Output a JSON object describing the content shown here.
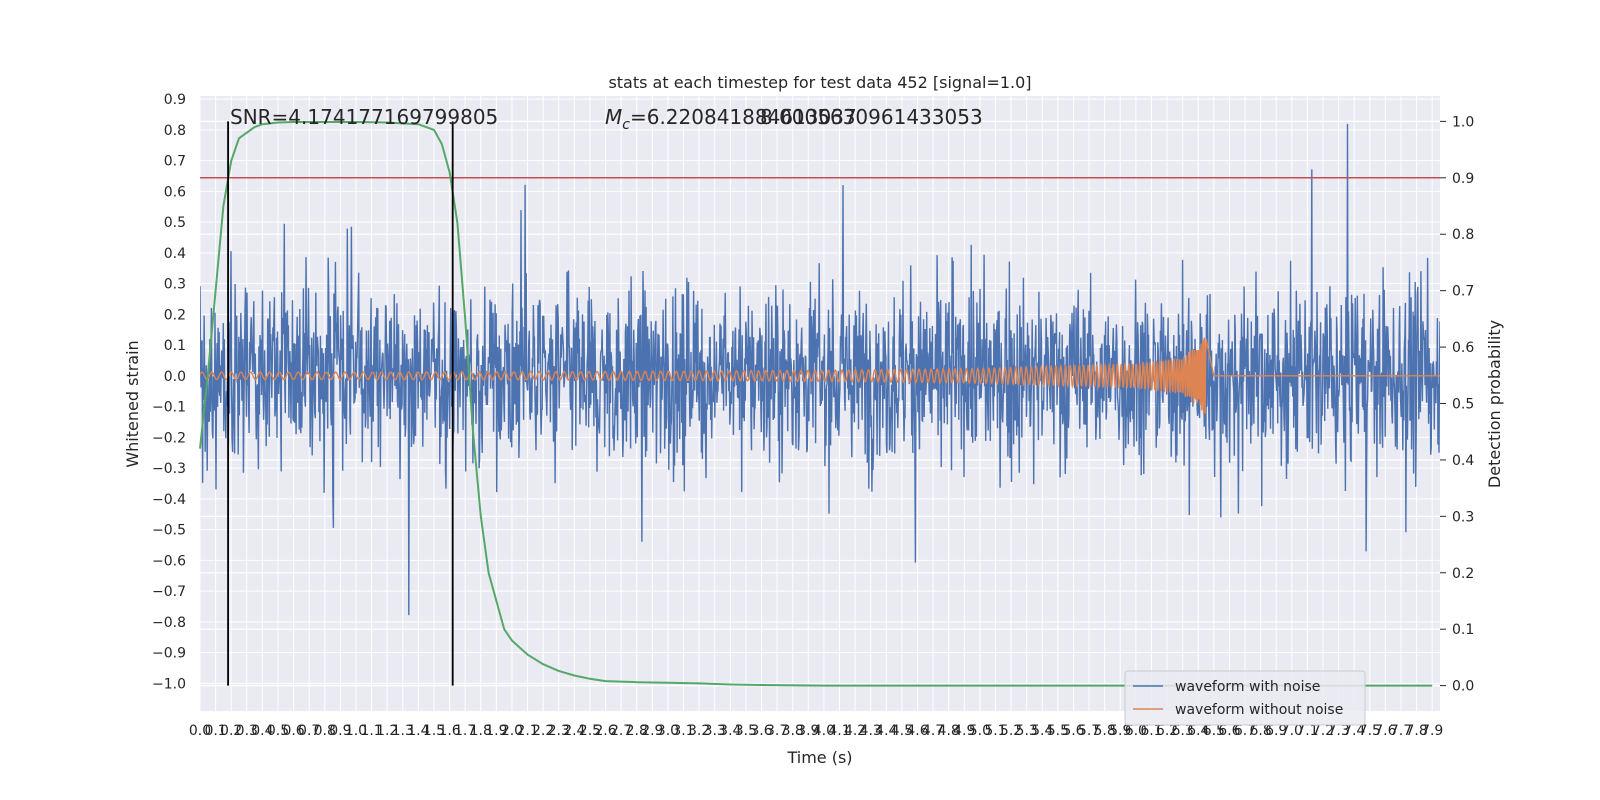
{
  "chart_data": {
    "type": "line",
    "title": "stats at each timestep for test data 452 [signal=1.0]",
    "xlabel": "Time (s)",
    "ylabel": "Whitened strain",
    "y2label": "Detection probability",
    "xlim": [
      0.0,
      7.95
    ],
    "ylim": [
      -1.09,
      0.91
    ],
    "y2lim": [
      -0.045,
      1.045
    ],
    "x_tick_labels": [
      "0.0",
      "0.1",
      "0.2",
      "0.3",
      "0.4",
      "0.5",
      "0.6",
      "0.7",
      "0.8",
      "0.9",
      "1.0",
      "1.1",
      "1.2",
      "1.3",
      "1.4",
      "1.5",
      "1.6",
      "1.7",
      "1.8",
      "1.9",
      "2.0",
      "2.1",
      "2.2",
      "2.3",
      "2.4",
      "2.5",
      "2.6",
      "2.7",
      "2.8",
      "2.9",
      "3.0",
      "3.1",
      "3.2",
      "3.3",
      "3.4",
      "3.5",
      "3.6",
      "3.7",
      "3.8",
      "3.9",
      "4.0",
      "4.1",
      "4.2",
      "4.3",
      "4.4",
      "4.5",
      "4.6",
      "4.7",
      "4.8",
      "4.9",
      "5.0",
      "5.1",
      "5.2",
      "5.3",
      "5.4",
      "5.5",
      "5.6",
      "5.7",
      "5.8",
      "5.9",
      "6.0",
      "6.1",
      "6.2",
      "6.3",
      "6.4",
      "6.5",
      "6.6",
      "6.7",
      "6.8",
      "6.9",
      "7.0",
      "7.1",
      "7.2",
      "7.3",
      "7.4",
      "7.5",
      "7.6",
      "7.7",
      "7.8",
      "7.9"
    ],
    "y_tick_labels": [
      "0.9",
      "0.8",
      "0.7",
      "0.6",
      "0.5",
      "0.4",
      "0.3",
      "0.2",
      "0.1",
      "0.0",
      "−0.1",
      "−0.2",
      "−0.3",
      "−0.4",
      "−0.5",
      "−0.6",
      "−0.7",
      "−0.8",
      "−0.9",
      "−1.0"
    ],
    "y2_tick_labels": [
      "1.0",
      "0.9",
      "0.8",
      "0.7",
      "0.6",
      "0.5",
      "0.4",
      "0.3",
      "0.2",
      "0.1",
      "0.0"
    ],
    "grid": true,
    "legend_position": "bottom-right",
    "series": [
      {
        "name": "waveform with noise",
        "color": "#4c72b0",
        "kind": "noisy strain, amplitude about ±0.45 with peaks to about ±0.8",
        "sample_points": {
          "x": [
            0.0,
            1.0,
            2.0,
            3.0,
            4.0,
            5.0,
            6.0,
            7.0,
            7.95
          ],
          "y": [
            0.35,
            -0.4,
            0.45,
            -0.5,
            0.4,
            0.78,
            -0.55,
            0.5,
            0.35
          ]
        }
      },
      {
        "name": "waveform without noise",
        "color": "#dd8452",
        "kind": "chirp growing from ±0.01 to peak 0.13 at about 6.45 s then ringdown to 0",
        "envelope": {
          "x": [
            0.0,
            1.0,
            2.0,
            3.0,
            4.0,
            5.0,
            6.0,
            6.3,
            6.45,
            6.5,
            7.95
          ],
          "y": [
            0.012,
            0.012,
            0.013,
            0.015,
            0.018,
            0.024,
            0.04,
            0.06,
            0.13,
            0.0,
            0.0
          ]
        }
      },
      {
        "name": "",
        "color": "#55a868",
        "axis": "right",
        "kind": "detection probability",
        "x": [
          0.0,
          0.05,
          0.1,
          0.15,
          0.2,
          0.25,
          0.3,
          0.35,
          0.4,
          0.5,
          0.6,
          0.8,
          1.0,
          1.2,
          1.4,
          1.5,
          1.55,
          1.6,
          1.65,
          1.7,
          1.75,
          1.8,
          1.85,
          1.9,
          1.95,
          2.0,
          2.1,
          2.2,
          2.3,
          2.4,
          2.5,
          2.6,
          2.8,
          3.0,
          3.2,
          3.4,
          3.6,
          4.0,
          5.0,
          6.0,
          7.0,
          7.9
        ],
        "y": [
          0.42,
          0.55,
          0.7,
          0.85,
          0.93,
          0.97,
          0.98,
          0.99,
          0.995,
          0.998,
          0.999,
          0.999,
          0.999,
          0.998,
          0.995,
          0.985,
          0.96,
          0.91,
          0.82,
          0.65,
          0.45,
          0.3,
          0.2,
          0.15,
          0.1,
          0.08,
          0.055,
          0.038,
          0.026,
          0.018,
          0.012,
          0.008,
          0.006,
          0.005,
          0.004,
          0.002,
          0.001,
          0.0,
          0.0,
          0.0,
          0.0,
          0.0
        ]
      }
    ],
    "threshold_line": {
      "y2": 0.9,
      "color": "#c44e52"
    },
    "vertical_lines": [
      {
        "x": 0.18,
        "color": "#000000"
      },
      {
        "x": 1.62,
        "color": "#000000"
      }
    ],
    "annotations": {
      "snr": "SNR=4.174177169799805",
      "mc_prefix": "M",
      "mc_sub": "c",
      "mc_value": "=6.220841884613037",
      "overlap_text": "8.0005630961433053"
    }
  }
}
